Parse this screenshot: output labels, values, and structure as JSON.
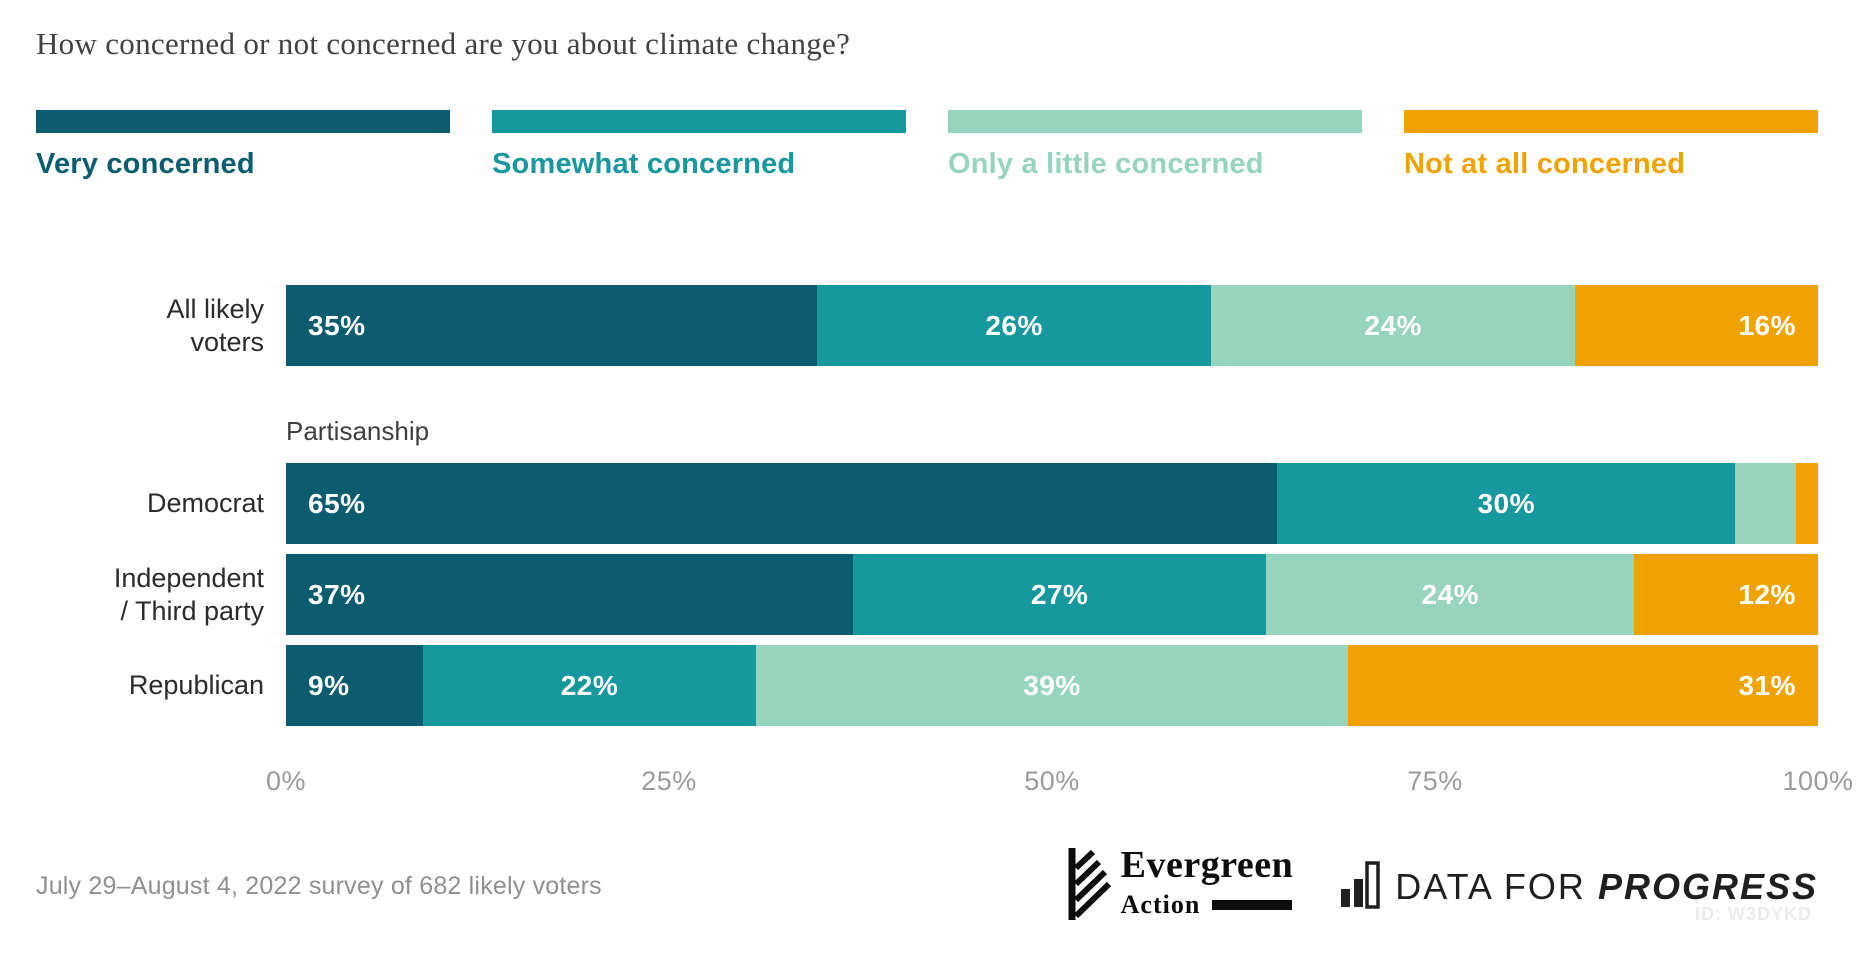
{
  "title": "How concerned or not concerned are you about climate change?",
  "chart_data": {
    "type": "bar",
    "orientation": "horizontal-stacked",
    "unit": "percent",
    "xlim": [
      0,
      100
    ],
    "x_ticks": [
      "0%",
      "25%",
      "50%",
      "75%",
      "100%"
    ],
    "legend_position": "top",
    "categories": [
      "All likely voters",
      "Democrat",
      "Independent / Third party",
      "Republican"
    ],
    "display_categories": [
      "All likely\nvoters",
      "Democrat",
      "Independent\n/ Third party",
      "Republican"
    ],
    "group_label": {
      "text": "Partisanship",
      "before_category_index": 1
    },
    "series": [
      {
        "name": "Very concerned",
        "color": "#0a5c6e",
        "values": [
          35,
          65,
          37,
          9
        ]
      },
      {
        "name": "Somewhat concerned",
        "color": "#16989e",
        "values": [
          26,
          30,
          27,
          22
        ]
      },
      {
        "name": "Only a little concerned",
        "color": "#96d4be",
        "values": [
          24,
          4,
          24,
          39
        ]
      },
      {
        "name": "Not at all concerned",
        "color": "#f0a202",
        "values": [
          16,
          1,
          12,
          31
        ]
      }
    ],
    "segment_labels": [
      [
        "35%",
        "26%",
        "24%",
        "16%"
      ],
      [
        "65%",
        "30%",
        "",
        ""
      ],
      [
        "37%",
        "27%",
        "24%",
        "12%"
      ],
      [
        "9%",
        "22%",
        "39%",
        "31%"
      ]
    ]
  },
  "footer": {
    "source_note": "July 29–August 4, 2022 survey of 682 likely voters",
    "chart_id": "ID: W3DYKD"
  },
  "logos": {
    "evergreen": {
      "name": "Evergreen",
      "sub": "Action"
    },
    "dfp": {
      "prefix": "DATA FOR",
      "suffix": "PROGRESS"
    }
  }
}
